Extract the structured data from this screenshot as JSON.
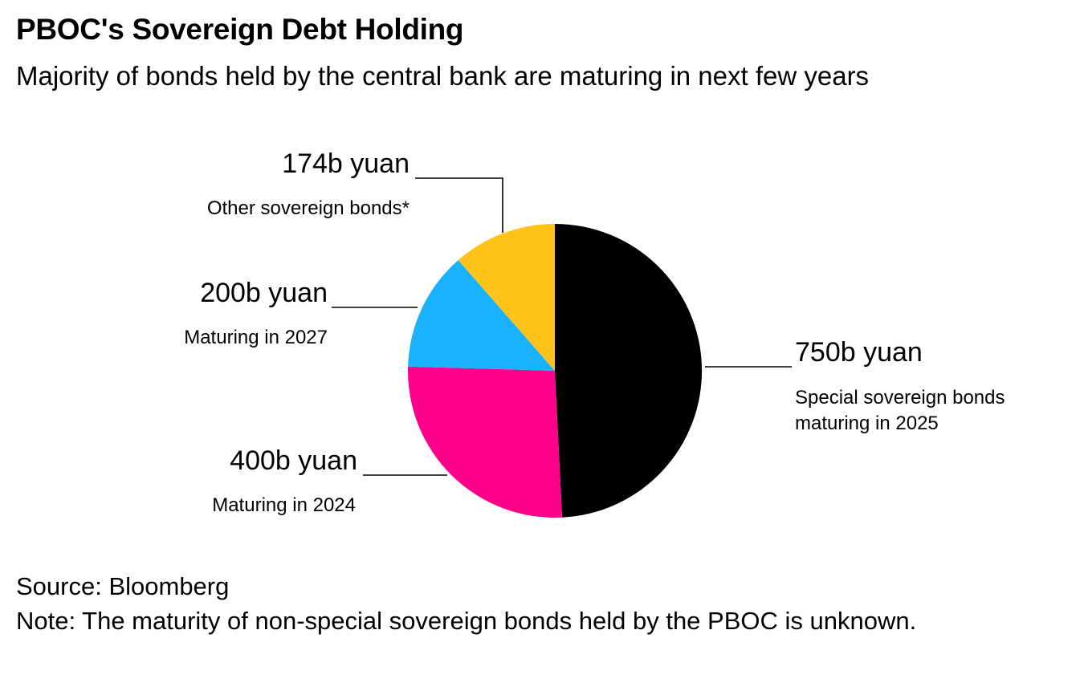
{
  "chart_data": {
    "type": "pie",
    "title": "PBOC's Sovereign Debt Holding",
    "subtitle": "Majority of bonds held by the central bank are maturing in next few years",
    "unit": "b yuan",
    "start_angle_deg": 0,
    "direction": "clockwise",
    "slices": [
      {
        "key": "s2025",
        "value": 750,
        "value_label": "750b yuan",
        "label": "Special sovereign bonds maturing in 2025",
        "label_lines": [
          "Special sovereign bonds",
          "maturing in 2025"
        ],
        "color": "#000000"
      },
      {
        "key": "s2024",
        "value": 400,
        "value_label": "400b yuan",
        "label": "Maturing in 2024",
        "label_lines": [
          "Maturing in 2024"
        ],
        "color": "#FF008A"
      },
      {
        "key": "s2027",
        "value": 200,
        "value_label": "200b yuan",
        "label": "Maturing in 2027",
        "label_lines": [
          "Maturing in 2027"
        ],
        "color": "#1AB2FF"
      },
      {
        "key": "sother",
        "value": 174,
        "value_label": "174b yuan",
        "label": "Other sovereign bonds*",
        "label_lines": [
          "Other sovereign bonds*"
        ],
        "color": "#FFC31A"
      }
    ]
  },
  "footer": {
    "source": "Source: Bloomberg",
    "note": "Note: The maturity of non-special sovereign bonds held by the PBOC is unknown."
  }
}
